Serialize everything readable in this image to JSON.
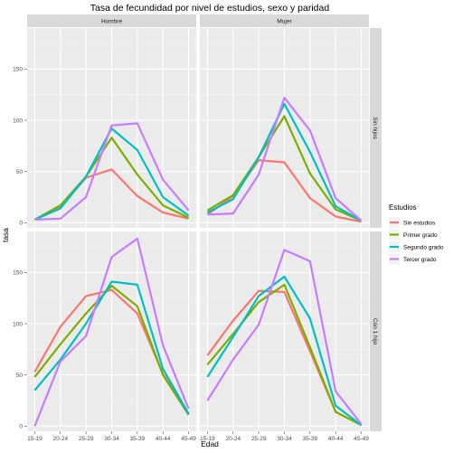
{
  "chart_data": {
    "type": "line",
    "title": "Tasa de fecundidad por nivel de estudios, sexo y paridad",
    "xlabel": "Edad",
    "ylabel": "tasa",
    "categories": [
      "15-19",
      "20-24",
      "25-29",
      "30-34",
      "35-39",
      "40-44",
      "45-49"
    ],
    "ylim": [
      -5,
      190
    ],
    "yticks": [
      0,
      50,
      100,
      150
    ],
    "grid": true,
    "legend": {
      "title": "Estudios",
      "position": "right",
      "entries": [
        "Sin estudios",
        "Primer grado",
        "Segundo grado",
        "Tercer grado"
      ],
      "colors": [
        "#F8766D",
        "#7CAE00",
        "#00BFC4",
        "#C77CFF"
      ]
    },
    "col_facets": [
      "Hombre",
      "Mujer"
    ],
    "row_facets": [
      "Sin hijos",
      "Con 1 hijo"
    ],
    "panels": [
      {
        "col": "Hombre",
        "row": "Sin hijos",
        "series": [
          {
            "name": "Sin estudios",
            "values": [
              3,
              15,
              44,
              52,
              26,
              10,
              4
            ]
          },
          {
            "name": "Primer grado",
            "values": [
              3,
              17,
              45,
              83,
              47,
              17,
              5
            ]
          },
          {
            "name": "Segundo grado",
            "values": [
              3,
              14,
              45,
              92,
              71,
              25,
              7
            ]
          },
          {
            "name": "Tercer grado",
            "values": [
              3,
              4,
              25,
              95,
              97,
              42,
              12
            ]
          }
        ]
      },
      {
        "col": "Mujer",
        "row": "Sin hijos",
        "series": [
          {
            "name": "Sin estudios",
            "values": [
              8,
              26,
              61,
              59,
              24,
              6,
              1
            ]
          },
          {
            "name": "Primer grado",
            "values": [
              12,
              27,
              64,
              104,
              48,
              13,
              2
            ]
          },
          {
            "name": "Segundo grado",
            "values": [
              10,
              23,
              64,
              116,
              69,
              16,
              2
            ]
          },
          {
            "name": "Tercer grado",
            "values": [
              8,
              9,
              47,
              122,
              90,
              24,
              2
            ]
          }
        ]
      },
      {
        "col": "Hombre",
        "row": "Con 1 hijo",
        "series": [
          {
            "name": "Sin estudios",
            "values": [
              53,
              97,
              127,
              133,
              110,
              51,
              12
            ]
          },
          {
            "name": "Primer grado",
            "values": [
              48,
              80,
              110,
              137,
              117,
              50,
              11
            ]
          },
          {
            "name": "Segundo grado",
            "values": [
              35,
              65,
              100,
              141,
              138,
              56,
              12
            ]
          },
          {
            "name": "Tercer grado",
            "values": [
              0,
              63,
              88,
              165,
              183,
              79,
              17
            ]
          }
        ]
      },
      {
        "col": "Mujer",
        "row": "Con 1 hijo",
        "series": [
          {
            "name": "Sin estudios",
            "values": [
              69,
              103,
              132,
              131,
              73,
              14,
              1
            ]
          },
          {
            "name": "Primer grado",
            "values": [
              60,
              90,
              121,
              138,
              77,
              14,
              1
            ]
          },
          {
            "name": "Segundo grado",
            "values": [
              48,
              87,
              127,
              146,
              105,
              20,
              1
            ]
          },
          {
            "name": "Tercer grado",
            "values": [
              25,
              65,
              99,
              172,
              161,
              34,
              2
            ]
          }
        ]
      }
    ]
  }
}
